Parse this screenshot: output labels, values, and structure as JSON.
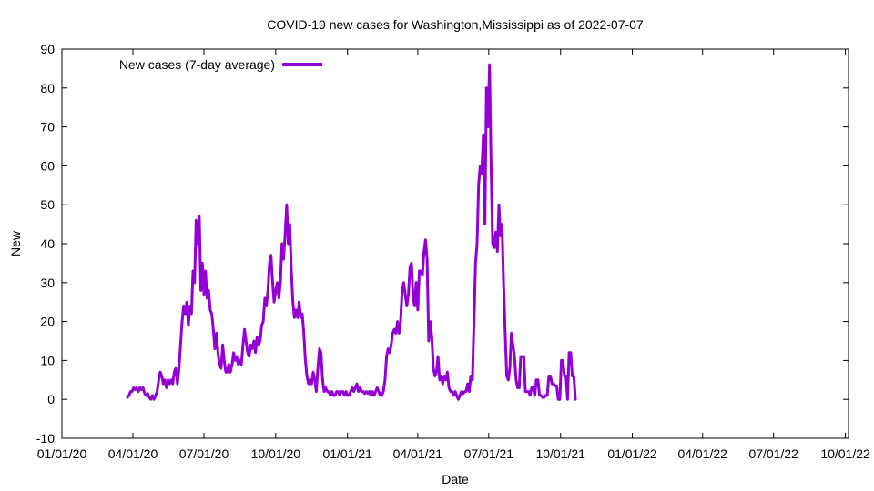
{
  "chart_data": {
    "type": "line",
    "title": "COVID-19 new cases for Washington,Mississippi as of 2022-07-07",
    "xlabel": "Date",
    "ylabel": "New",
    "ylim": [
      -10,
      90
    ],
    "yticks": [
      -10,
      0,
      10,
      20,
      30,
      40,
      50,
      60,
      70,
      80,
      90
    ],
    "xlim": [
      0,
      1008
    ],
    "xticks": [
      {
        "day": 0,
        "label": "01/01/20"
      },
      {
        "day": 91,
        "label": "04/01/20"
      },
      {
        "day": 182,
        "label": "07/01/20"
      },
      {
        "day": 274,
        "label": "10/01/20"
      },
      {
        "day": 366,
        "label": "01/01/21"
      },
      {
        "day": 456,
        "label": "04/01/21"
      },
      {
        "day": 547,
        "label": "07/01/21"
      },
      {
        "day": 639,
        "label": "10/01/21"
      },
      {
        "day": 731,
        "label": "01/01/22"
      },
      {
        "day": 821,
        "label": "04/01/22"
      },
      {
        "day": 912,
        "label": "07/01/22"
      },
      {
        "day": 1004,
        "label": "10/01/22"
      }
    ],
    "grid": false,
    "legend_position": "top-left",
    "series": [
      {
        "name": "New cases (7-day average)",
        "color": "#9400d3",
        "x_unit": "days since 2020-01-01",
        "points": [
          [
            84,
            0.5
          ],
          [
            86,
            1
          ],
          [
            88,
            2
          ],
          [
            90,
            2
          ],
          [
            92,
            3
          ],
          [
            94,
            2.5
          ],
          [
            96,
            3
          ],
          [
            98,
            2
          ],
          [
            100,
            3
          ],
          [
            102,
            2.5
          ],
          [
            104,
            3
          ],
          [
            106,
            1.5
          ],
          [
            108,
            1
          ],
          [
            110,
            1.5
          ],
          [
            112,
            0.5
          ],
          [
            114,
            0
          ],
          [
            116,
            1
          ],
          [
            118,
            0
          ],
          [
            120,
            1
          ],
          [
            122,
            2
          ],
          [
            124,
            5
          ],
          [
            126,
            7
          ],
          [
            128,
            6
          ],
          [
            130,
            4
          ],
          [
            132,
            5
          ],
          [
            134,
            3
          ],
          [
            136,
            5
          ],
          [
            138,
            4
          ],
          [
            140,
            5
          ],
          [
            142,
            4
          ],
          [
            144,
            7
          ],
          [
            146,
            8
          ],
          [
            148,
            4
          ],
          [
            150,
            8
          ],
          [
            152,
            14
          ],
          [
            154,
            20
          ],
          [
            156,
            24
          ],
          [
            158,
            22
          ],
          [
            160,
            25
          ],
          [
            162,
            19
          ],
          [
            164,
            24
          ],
          [
            166,
            22
          ],
          [
            168,
            33
          ],
          [
            170,
            30
          ],
          [
            172,
            46
          ],
          [
            174,
            40
          ],
          [
            176,
            47
          ],
          [
            178,
            28
          ],
          [
            180,
            35
          ],
          [
            182,
            27
          ],
          [
            184,
            33
          ],
          [
            186,
            26
          ],
          [
            188,
            28
          ],
          [
            190,
            23
          ],
          [
            192,
            22
          ],
          [
            194,
            18
          ],
          [
            196,
            13
          ],
          [
            198,
            17
          ],
          [
            200,
            12
          ],
          [
            202,
            9
          ],
          [
            204,
            8
          ],
          [
            206,
            14
          ],
          [
            208,
            10
          ],
          [
            210,
            7
          ],
          [
            212,
            7
          ],
          [
            214,
            9
          ],
          [
            216,
            7
          ],
          [
            218,
            9
          ],
          [
            220,
            12
          ],
          [
            222,
            10
          ],
          [
            224,
            11
          ],
          [
            226,
            9
          ],
          [
            228,
            10
          ],
          [
            230,
            9
          ],
          [
            232,
            14
          ],
          [
            234,
            18
          ],
          [
            236,
            15
          ],
          [
            238,
            12
          ],
          [
            240,
            11
          ],
          [
            242,
            14
          ],
          [
            244,
            13
          ],
          [
            246,
            15
          ],
          [
            248,
            12
          ],
          [
            250,
            16
          ],
          [
            252,
            14
          ],
          [
            254,
            15
          ],
          [
            256,
            19
          ],
          [
            258,
            20
          ],
          [
            260,
            26
          ],
          [
            262,
            24
          ],
          [
            264,
            28
          ],
          [
            266,
            35
          ],
          [
            268,
            37
          ],
          [
            270,
            30
          ],
          [
            272,
            25
          ],
          [
            274,
            28
          ],
          [
            276,
            30
          ],
          [
            278,
            26
          ],
          [
            280,
            30
          ],
          [
            282,
            40
          ],
          [
            284,
            36
          ],
          [
            286,
            42
          ],
          [
            288,
            50
          ],
          [
            290,
            40
          ],
          [
            292,
            45
          ],
          [
            294,
            33
          ],
          [
            296,
            25
          ],
          [
            298,
            21
          ],
          [
            300,
            23
          ],
          [
            302,
            21
          ],
          [
            304,
            25
          ],
          [
            306,
            21
          ],
          [
            308,
            22
          ],
          [
            310,
            17
          ],
          [
            312,
            10
          ],
          [
            314,
            6
          ],
          [
            316,
            4
          ],
          [
            318,
            5
          ],
          [
            320,
            4
          ],
          [
            322,
            7
          ],
          [
            324,
            5
          ],
          [
            326,
            2
          ],
          [
            328,
            8
          ],
          [
            330,
            13
          ],
          [
            332,
            12
          ],
          [
            334,
            5
          ],
          [
            336,
            2
          ],
          [
            338,
            3
          ],
          [
            340,
            2
          ],
          [
            342,
            2
          ],
          [
            344,
            1
          ],
          [
            346,
            2
          ],
          [
            348,
            1
          ],
          [
            350,
            1
          ],
          [
            352,
            2
          ],
          [
            354,
            2
          ],
          [
            356,
            1
          ],
          [
            358,
            2
          ],
          [
            360,
            2
          ],
          [
            362,
            1
          ],
          [
            364,
            2
          ],
          [
            366,
            1
          ],
          [
            368,
            1
          ],
          [
            370,
            2
          ],
          [
            372,
            3
          ],
          [
            374,
            2
          ],
          [
            376,
            3
          ],
          [
            378,
            4
          ],
          [
            380,
            2
          ],
          [
            382,
            3
          ],
          [
            384,
            2
          ],
          [
            386,
            2
          ],
          [
            388,
            1.5
          ],
          [
            390,
            2
          ],
          [
            392,
            1.5
          ],
          [
            394,
            2
          ],
          [
            396,
            1
          ],
          [
            398,
            2
          ],
          [
            400,
            1
          ],
          [
            402,
            2
          ],
          [
            404,
            3
          ],
          [
            406,
            2
          ],
          [
            408,
            1
          ],
          [
            410,
            1
          ],
          [
            412,
            2
          ],
          [
            414,
            5
          ],
          [
            416,
            11
          ],
          [
            418,
            13
          ],
          [
            420,
            12
          ],
          [
            422,
            14
          ],
          [
            424,
            17
          ],
          [
            426,
            18
          ],
          [
            428,
            17
          ],
          [
            430,
            20
          ],
          [
            432,
            17
          ],
          [
            434,
            20
          ],
          [
            436,
            28
          ],
          [
            438,
            30
          ],
          [
            440,
            27
          ],
          [
            442,
            24
          ],
          [
            444,
            27
          ],
          [
            446,
            34
          ],
          [
            448,
            35
          ],
          [
            450,
            26
          ],
          [
            452,
            24
          ],
          [
            454,
            30
          ],
          [
            456,
            23
          ],
          [
            458,
            33
          ],
          [
            460,
            33
          ],
          [
            462,
            32
          ],
          [
            464,
            38
          ],
          [
            466,
            41
          ],
          [
            468,
            36
          ],
          [
            470,
            15
          ],
          [
            472,
            20
          ],
          [
            474,
            16
          ],
          [
            476,
            8
          ],
          [
            478,
            6
          ],
          [
            480,
            7
          ],
          [
            482,
            11
          ],
          [
            484,
            5
          ],
          [
            486,
            6
          ],
          [
            488,
            4
          ],
          [
            490,
            6
          ],
          [
            492,
            5
          ],
          [
            494,
            7
          ],
          [
            496,
            3
          ],
          [
            498,
            2
          ],
          [
            500,
            2
          ],
          [
            502,
            1
          ],
          [
            504,
            2
          ],
          [
            506,
            1
          ],
          [
            508,
            0
          ],
          [
            510,
            1
          ],
          [
            512,
            2
          ],
          [
            514,
            1.5
          ],
          [
            516,
            2
          ],
          [
            518,
            2
          ],
          [
            520,
            4
          ],
          [
            522,
            2
          ],
          [
            524,
            6
          ],
          [
            526,
            5
          ],
          [
            528,
            20
          ],
          [
            530,
            35
          ],
          [
            532,
            40
          ],
          [
            534,
            55
          ],
          [
            536,
            60
          ],
          [
            538,
            58
          ],
          [
            540,
            68
          ],
          [
            542,
            45
          ],
          [
            544,
            80
          ],
          [
            546,
            70
          ],
          [
            548,
            86
          ],
          [
            550,
            60
          ],
          [
            552,
            40
          ],
          [
            554,
            39
          ],
          [
            556,
            43
          ],
          [
            558,
            38
          ],
          [
            560,
            50
          ],
          [
            562,
            42
          ],
          [
            564,
            45
          ],
          [
            566,
            30
          ],
          [
            568,
            17
          ],
          [
            570,
            6
          ],
          [
            572,
            5
          ],
          [
            574,
            8
          ],
          [
            576,
            17
          ],
          [
            578,
            14
          ],
          [
            580,
            11
          ],
          [
            582,
            5
          ],
          [
            584,
            3
          ],
          [
            586,
            3
          ],
          [
            588,
            11
          ],
          [
            590,
            11
          ],
          [
            592,
            11
          ],
          [
            594,
            2
          ],
          [
            596,
            2
          ],
          [
            598,
            2
          ],
          [
            600,
            1
          ],
          [
            602,
            3
          ],
          [
            604,
            3
          ],
          [
            606,
            1
          ],
          [
            608,
            5
          ],
          [
            610,
            5
          ],
          [
            612,
            1
          ],
          [
            614,
            1
          ],
          [
            616,
            0.5
          ],
          [
            618,
            0.5
          ],
          [
            620,
            1
          ],
          [
            622,
            1
          ],
          [
            624,
            6
          ],
          [
            626,
            6
          ],
          [
            628,
            4
          ],
          [
            630,
            4
          ],
          [
            632,
            3.5
          ],
          [
            634,
            3.5
          ],
          [
            636,
            0
          ],
          [
            638,
            0
          ],
          [
            640,
            10
          ],
          [
            642,
            10
          ],
          [
            644,
            6
          ],
          [
            646,
            6
          ],
          [
            648,
            0
          ],
          [
            650,
            12
          ],
          [
            652,
            12
          ],
          [
            654,
            6
          ],
          [
            656,
            6
          ],
          [
            658,
            0
          ]
        ]
      }
    ]
  }
}
